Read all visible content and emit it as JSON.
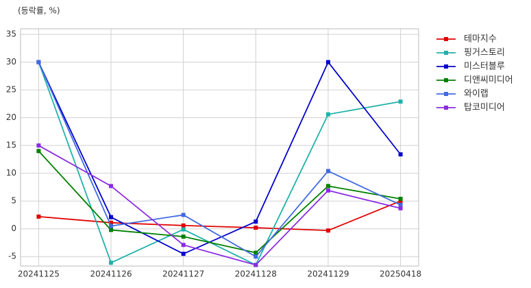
{
  "chart_data": {
    "type": "line",
    "y_label": "(등락률, %)",
    "categories": [
      "20241125",
      "20241126",
      "20241127",
      "20241128",
      "20241129",
      "20250418"
    ],
    "series": [
      {
        "name": "테마지수",
        "color": "#e00000",
        "values": [
          2.2,
          1.1,
          0.6,
          0.2,
          -0.3,
          5.0
        ]
      },
      {
        "name": "핑거스토리",
        "color": "#20b2aa",
        "values": [
          30,
          -6.1,
          -0.1,
          -6.5,
          20.6,
          22.9
        ]
      },
      {
        "name": "미스터블루",
        "color": "#0000cd",
        "values": [
          30,
          2.1,
          -4.5,
          1.3,
          30,
          13.4
        ]
      },
      {
        "name": "디앤씨미디어",
        "color": "#008000",
        "values": [
          14,
          -0.2,
          -1.4,
          -4.3,
          7.7,
          5.4
        ]
      },
      {
        "name": "와이랩",
        "color": "#4169e1",
        "values": [
          30,
          0.5,
          2.5,
          -5,
          10.4,
          4.3
        ]
      },
      {
        "name": "탑코미디어",
        "color": "#8a2be2",
        "values": [
          15,
          7.7,
          -2.9,
          -6.5,
          6.9,
          3.7
        ]
      }
    ],
    "ylim": [
      -6.7,
      36
    ],
    "yticks": [
      -5,
      0,
      5,
      10,
      15,
      20,
      25,
      30,
      35
    ],
    "grid": true,
    "legend": "outside-right"
  }
}
